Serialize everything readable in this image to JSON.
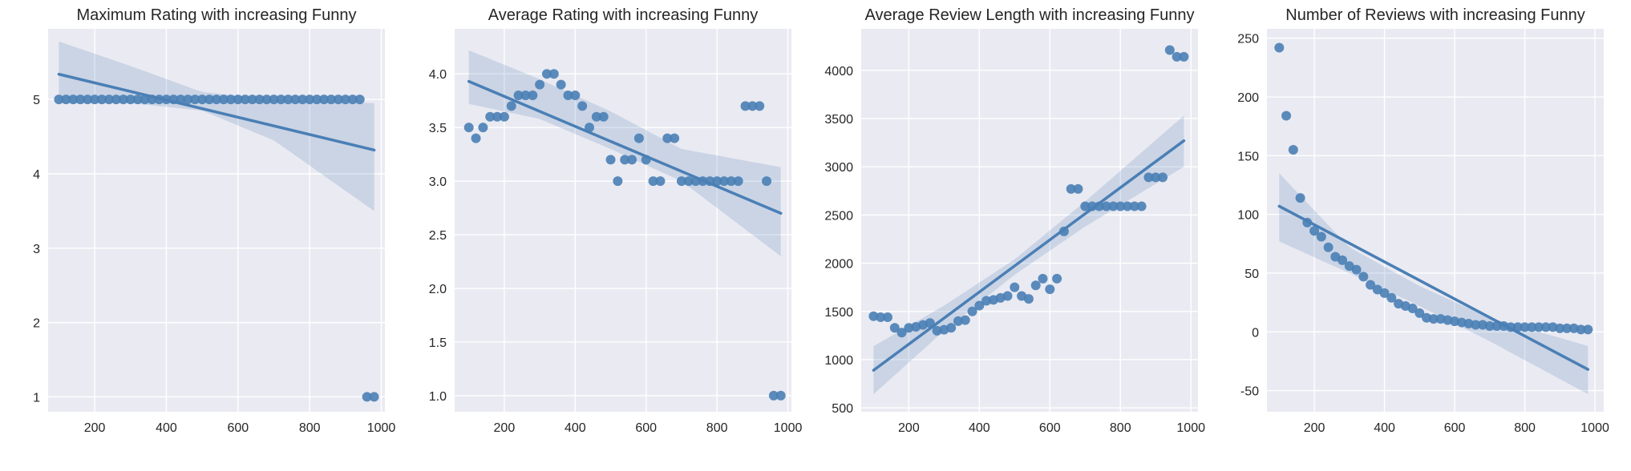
{
  "chart_data": [
    {
      "type": "scatter",
      "title": "Maximum Rating with increasing Funny",
      "xlabel": "",
      "ylabel": "",
      "xlim": [
        70,
        1010
      ],
      "ylim": [
        0.8,
        5.95
      ],
      "xticks": [
        200,
        400,
        600,
        800,
        1000
      ],
      "yticks": [
        1,
        2,
        3,
        4,
        5
      ],
      "grid": true,
      "color": "#4a7fb5",
      "x": [
        100,
        120,
        140,
        160,
        180,
        200,
        220,
        240,
        260,
        280,
        300,
        320,
        340,
        360,
        380,
        400,
        420,
        440,
        460,
        480,
        500,
        520,
        540,
        560,
        580,
        600,
        620,
        640,
        660,
        680,
        700,
        720,
        740,
        760,
        780,
        800,
        820,
        840,
        860,
        880,
        900,
        920,
        940,
        960,
        980
      ],
      "y": [
        5,
        5,
        5,
        5,
        5,
        5,
        5,
        5,
        5,
        5,
        5,
        5,
        5,
        5,
        5,
        5,
        5,
        5,
        5,
        5,
        5,
        5,
        5,
        5,
        5,
        5,
        5,
        5,
        5,
        5,
        5,
        5,
        5,
        5,
        5,
        5,
        5,
        5,
        5,
        5,
        5,
        5,
        5,
        1,
        1
      ],
      "regression": {
        "x": [
          100,
          980
        ],
        "y": [
          5.34,
          4.32
        ]
      },
      "confidence_band": {
        "x": [
          100,
          300,
          500,
          700,
          980
        ],
        "lower": [
          4.95,
          4.95,
          4.85,
          4.45,
          3.5
        ],
        "upper": [
          5.78,
          5.45,
          5.1,
          5.0,
          4.95
        ]
      }
    },
    {
      "type": "scatter",
      "title": "Average Rating with increasing Funny",
      "xlabel": "",
      "ylabel": "",
      "xlim": [
        60,
        1010
      ],
      "ylim": [
        0.85,
        4.42
      ],
      "xticks": [
        200,
        400,
        600,
        800,
        1000
      ],
      "yticks": [
        "1.0",
        "1.5",
        "2.0",
        "2.5",
        "3.0",
        "3.5",
        "4.0"
      ],
      "grid": true,
      "color": "#4a7fb5",
      "x": [
        100,
        120,
        140,
        160,
        180,
        200,
        220,
        240,
        260,
        280,
        300,
        320,
        340,
        360,
        380,
        400,
        420,
        440,
        460,
        480,
        500,
        520,
        540,
        560,
        580,
        600,
        620,
        640,
        660,
        680,
        700,
        720,
        740,
        760,
        780,
        800,
        820,
        840,
        860,
        880,
        900,
        920,
        940,
        960,
        980
      ],
      "y": [
        3.5,
        3.4,
        3.5,
        3.6,
        3.6,
        3.6,
        3.7,
        3.8,
        3.8,
        3.8,
        3.9,
        4.0,
        4.0,
        3.9,
        3.8,
        3.8,
        3.7,
        3.5,
        3.6,
        3.6,
        3.2,
        3.0,
        3.2,
        3.2,
        3.4,
        3.2,
        3.0,
        3.0,
        3.4,
        3.4,
        3.0,
        3.0,
        3.0,
        3.0,
        3.0,
        3.0,
        3.0,
        3.0,
        3.0,
        3.7,
        3.7,
        3.7,
        3.0,
        1.0,
        1.0
      ],
      "regression": {
        "x": [
          100,
          980
        ],
        "y": [
          3.93,
          2.7
        ]
      },
      "confidence_band": {
        "x": [
          100,
          300,
          500,
          700,
          980
        ],
        "lower": [
          3.72,
          3.58,
          3.3,
          3.0,
          2.3
        ],
        "upper": [
          4.22,
          3.95,
          3.65,
          3.3,
          3.13
        ]
      }
    },
    {
      "type": "scatter",
      "title": "Average Review Length with increasing Funny",
      "xlabel": "",
      "ylabel": "",
      "xlim": [
        65,
        1020
      ],
      "ylim": [
        460,
        4430
      ],
      "xticks": [
        200,
        400,
        600,
        800,
        1000
      ],
      "yticks": [
        500,
        1000,
        1500,
        2000,
        2500,
        3000,
        3500,
        4000
      ],
      "grid": true,
      "color": "#4a7fb5",
      "x": [
        100,
        120,
        140,
        160,
        180,
        200,
        220,
        240,
        260,
        280,
        300,
        320,
        340,
        360,
        380,
        400,
        420,
        440,
        460,
        480,
        500,
        520,
        540,
        560,
        580,
        600,
        620,
        640,
        660,
        680,
        700,
        720,
        740,
        760,
        780,
        800,
        820,
        840,
        860,
        880,
        900,
        920,
        940,
        960,
        980
      ],
      "y": [
        1450,
        1440,
        1440,
        1330,
        1280,
        1330,
        1340,
        1360,
        1380,
        1300,
        1310,
        1330,
        1400,
        1410,
        1500,
        1560,
        1610,
        1620,
        1640,
        1660,
        1750,
        1660,
        1630,
        1770,
        1840,
        1730,
        1840,
        2330,
        2770,
        2770,
        2590,
        2590,
        2590,
        2590,
        2590,
        2590,
        2590,
        2590,
        2590,
        2890,
        2890,
        2890,
        4210,
        4140,
        4140
      ],
      "regression": {
        "x": [
          100,
          980
        ],
        "y": [
          890,
          3270
        ]
      },
      "confidence_band": {
        "x": [
          100,
          300,
          500,
          700,
          980
        ],
        "lower": [
          640,
          1300,
          1880,
          2380,
          3000
        ],
        "upper": [
          1140,
          1560,
          2040,
          2640,
          3530
        ]
      }
    },
    {
      "type": "scatter",
      "title": "Number of Reviews with increasing Funny",
      "xlabel": "",
      "ylabel": "",
      "xlim": [
        65,
        1025
      ],
      "ylim": [
        -68,
        258
      ],
      "xticks": [
        200,
        400,
        600,
        800,
        1000
      ],
      "yticks": [
        -50,
        0,
        50,
        100,
        150,
        200,
        250
      ],
      "grid": true,
      "color": "#4a7fb5",
      "x": [
        100,
        120,
        140,
        160,
        180,
        200,
        220,
        240,
        260,
        280,
        300,
        320,
        340,
        360,
        380,
        400,
        420,
        440,
        460,
        480,
        500,
        520,
        540,
        560,
        580,
        600,
        620,
        640,
        660,
        680,
        700,
        720,
        740,
        760,
        780,
        800,
        820,
        840,
        860,
        880,
        900,
        920,
        940,
        960,
        980
      ],
      "y": [
        242,
        184,
        155,
        114,
        93,
        86,
        81,
        72,
        64,
        61,
        56,
        53,
        47,
        40,
        36,
        33,
        29,
        24,
        22,
        20,
        16,
        12,
        11,
        11,
        10,
        9,
        8,
        7,
        6,
        6,
        5,
        5,
        5,
        4,
        4,
        4,
        4,
        4,
        4,
        4,
        3,
        3,
        3,
        2,
        2
      ],
      "regression": {
        "x": [
          100,
          980
        ],
        "y": [
          107,
          -32
        ]
      },
      "confidence_band": {
        "x": [
          100,
          300,
          500,
          700,
          980
        ],
        "lower": [
          77,
          50,
          22,
          -8,
          -53
        ],
        "upper": [
          135,
          72,
          39,
          12,
          -12
        ]
      }
    }
  ]
}
